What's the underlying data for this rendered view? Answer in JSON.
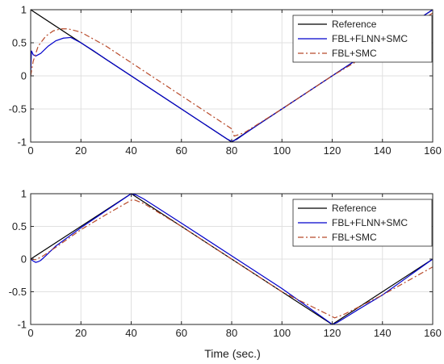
{
  "chart_data": [
    {
      "type": "line",
      "title": "",
      "xlabel": "",
      "ylabel": "",
      "xlim": [
        0,
        160
      ],
      "ylim": [
        -1,
        1
      ],
      "xticks": [
        0,
        20,
        40,
        60,
        80,
        100,
        120,
        140,
        160
      ],
      "yticks": [
        -1,
        -0.5,
        0,
        0.5,
        1
      ],
      "grid": true,
      "legend_position": "top-right",
      "series": [
        {
          "name": "Reference",
          "color": "#000000",
          "style": "solid",
          "x": [
            0,
            80,
            160
          ],
          "y": [
            1,
            -1,
            1
          ]
        },
        {
          "name": "FBL+FLNN+SMC",
          "color": "#0000cc",
          "style": "solid",
          "x": [
            0,
            0.3,
            1,
            2,
            4,
            7,
            10,
            13,
            16,
            20,
            25,
            30,
            40,
            50,
            60,
            70,
            78,
            80,
            82,
            85,
            90,
            100,
            120,
            140,
            160
          ],
          "y": [
            0,
            0.38,
            0.32,
            0.3,
            0.34,
            0.45,
            0.53,
            0.57,
            0.58,
            0.5,
            0.38,
            0.25,
            0.0,
            -0.25,
            -0.5,
            -0.75,
            -0.95,
            -0.99,
            -0.96,
            -0.88,
            -0.75,
            -0.5,
            0.0,
            0.5,
            1.0
          ]
        },
        {
          "name": "FBL+SMC",
          "color": "#b84a2a",
          "style": "dashdot",
          "x": [
            0,
            1,
            3,
            6,
            9,
            12,
            15,
            20,
            30,
            40,
            50,
            60,
            70,
            80,
            81,
            85,
            90,
            100,
            120,
            140,
            160
          ],
          "y": [
            0,
            0.22,
            0.45,
            0.6,
            0.68,
            0.71,
            0.71,
            0.66,
            0.45,
            0.2,
            -0.05,
            -0.3,
            -0.55,
            -0.8,
            -0.91,
            -0.86,
            -0.74,
            -0.5,
            0.0,
            0.45,
            0.95
          ]
        }
      ]
    },
    {
      "type": "line",
      "title": "",
      "xlabel": "Time (sec.)",
      "ylabel": "",
      "xlim": [
        0,
        160
      ],
      "ylim": [
        -1,
        1
      ],
      "xticks": [
        0,
        20,
        40,
        60,
        80,
        100,
        120,
        140,
        160
      ],
      "yticks": [
        -1,
        -0.5,
        0,
        0.5,
        1
      ],
      "grid": true,
      "legend_position": "top-right",
      "series": [
        {
          "name": "Reference",
          "color": "#000000",
          "style": "solid",
          "x": [
            0,
            40,
            120,
            160
          ],
          "y": [
            0,
            1,
            -1,
            0
          ]
        },
        {
          "name": "FBL+FLNN+SMC",
          "color": "#0000cc",
          "style": "solid",
          "x": [
            0,
            1,
            2,
            3,
            4,
            6,
            10,
            20,
            30,
            40,
            42,
            45,
            60,
            80,
            100,
            119,
            120,
            122,
            125,
            130,
            140,
            160
          ],
          "y": [
            0,
            -0.03,
            -0.05,
            -0.04,
            -0.02,
            0.05,
            0.2,
            0.48,
            0.74,
            1.0,
            0.98,
            0.92,
            0.55,
            0.05,
            -0.45,
            -0.97,
            -1.0,
            -0.97,
            -0.9,
            -0.78,
            -0.55,
            0.0
          ]
        },
        {
          "name": "FBL+SMC",
          "color": "#b84a2a",
          "style": "dashdot",
          "x": [
            0,
            2,
            5,
            10,
            20,
            30,
            40,
            41,
            45,
            60,
            80,
            100,
            120,
            121,
            125,
            140,
            160
          ],
          "y": [
            0,
            -0.01,
            0.05,
            0.18,
            0.45,
            0.68,
            0.9,
            0.91,
            0.85,
            0.5,
            0.0,
            -0.5,
            -0.88,
            -0.9,
            -0.84,
            -0.55,
            -0.12
          ]
        }
      ]
    }
  ]
}
